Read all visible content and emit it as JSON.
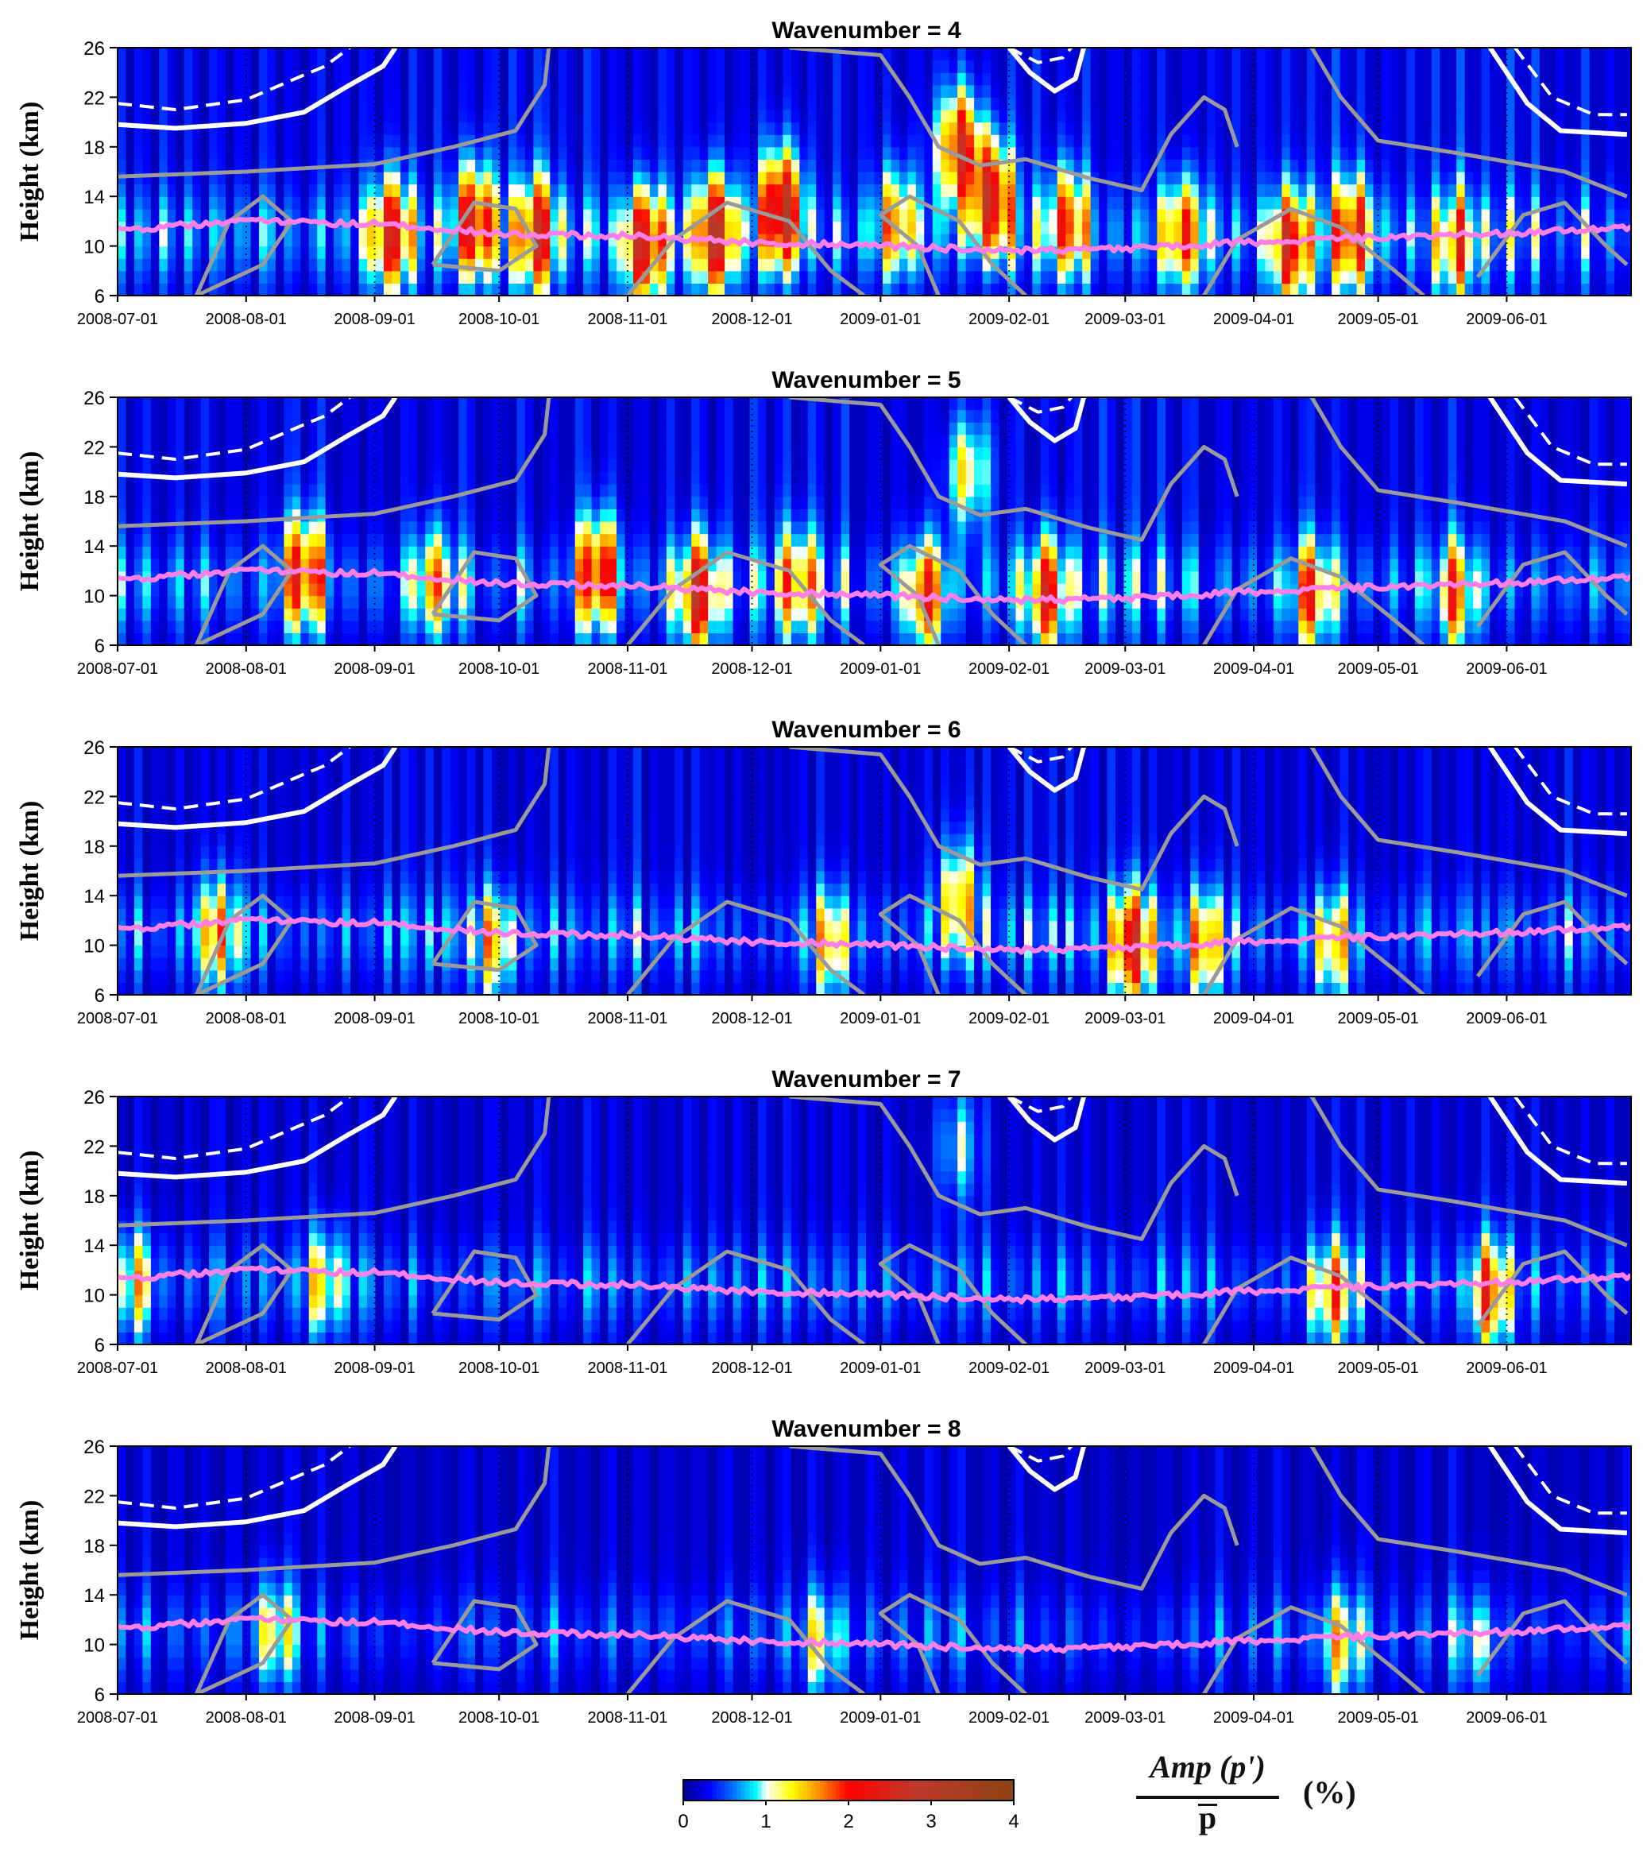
{
  "chart_data": {
    "type": "heatmap",
    "x_tick_labels": [
      "2008-07-01",
      "2008-08-01",
      "2008-09-01",
      "2008-10-01",
      "2008-11-01",
      "2008-12-01",
      "2009-01-01",
      "2009-02-01",
      "2009-03-01",
      "2009-04-01",
      "2009-05-01",
      "2009-06-01"
    ],
    "x_range": [
      "2008-07-01",
      "2009-06-30"
    ],
    "y_ticks": [
      6,
      10,
      14,
      18,
      22,
      26
    ],
    "ylim": [
      6,
      26
    ],
    "ylabel": "Height (km)",
    "panels": [
      {
        "title": "Wavenumber = 4",
        "amplitude_blobs": [
          {
            "date": "2008-09-05",
            "height": 11,
            "amp": 2.1
          },
          {
            "date": "2008-09-25",
            "height": 12,
            "amp": 2.2
          },
          {
            "date": "2008-10-10",
            "height": 11,
            "amp": 2.0
          },
          {
            "date": "2008-11-05",
            "height": 10,
            "amp": 2.4
          },
          {
            "date": "2008-11-22",
            "height": 11,
            "amp": 2.6
          },
          {
            "date": "2008-12-08",
            "height": 13,
            "amp": 2.8
          },
          {
            "date": "2009-01-05",
            "height": 12,
            "amp": 1.4
          },
          {
            "date": "2009-01-20",
            "height": 18,
            "amp": 2.3
          },
          {
            "date": "2009-01-28",
            "height": 14,
            "amp": 2.4
          },
          {
            "date": "2009-02-15",
            "height": 12,
            "amp": 1.6
          },
          {
            "date": "2009-03-15",
            "height": 11,
            "amp": 1.7
          },
          {
            "date": "2009-04-10",
            "height": 10,
            "amp": 2.0
          },
          {
            "date": "2009-04-25",
            "height": 11,
            "amp": 1.8
          },
          {
            "date": "2009-05-20",
            "height": 10,
            "amp": 1.3
          }
        ]
      },
      {
        "title": "Wavenumber = 5",
        "amplitude_blobs": [
          {
            "date": "2008-08-15",
            "height": 12,
            "amp": 2.0
          },
          {
            "date": "2008-09-15",
            "height": 11,
            "amp": 1.4
          },
          {
            "date": "2008-10-25",
            "height": 12,
            "amp": 2.2
          },
          {
            "date": "2008-11-18",
            "height": 10,
            "amp": 2.2
          },
          {
            "date": "2008-12-12",
            "height": 11,
            "amp": 1.5
          },
          {
            "date": "2009-01-12",
            "height": 10,
            "amp": 2.0
          },
          {
            "date": "2009-01-22",
            "height": 20,
            "amp": 1.4
          },
          {
            "date": "2009-02-10",
            "height": 10,
            "amp": 2.0
          },
          {
            "date": "2009-04-15",
            "height": 10,
            "amp": 1.6
          },
          {
            "date": "2009-05-20",
            "height": 10,
            "amp": 1.4
          }
        ]
      },
      {
        "title": "Wavenumber = 6",
        "amplitude_blobs": [
          {
            "date": "2008-07-25",
            "height": 11,
            "amp": 1.6
          },
          {
            "date": "2008-09-30",
            "height": 10,
            "amp": 1.4
          },
          {
            "date": "2008-12-20",
            "height": 10,
            "amp": 1.3
          },
          {
            "date": "2009-01-20",
            "height": 14,
            "amp": 1.5
          },
          {
            "date": "2009-03-03",
            "height": 10,
            "amp": 2.4
          },
          {
            "date": "2009-03-20",
            "height": 10,
            "amp": 1.6
          },
          {
            "date": "2009-04-20",
            "height": 10,
            "amp": 1.4
          }
        ]
      },
      {
        "title": "Wavenumber = 7",
        "amplitude_blobs": [
          {
            "date": "2008-07-05",
            "height": 11,
            "amp": 1.4
          },
          {
            "date": "2008-08-20",
            "height": 11,
            "amp": 1.4
          },
          {
            "date": "2009-01-20",
            "height": 22,
            "amp": 1.0
          },
          {
            "date": "2009-04-20",
            "height": 10,
            "amp": 1.8
          },
          {
            "date": "2009-05-28",
            "height": 10,
            "amp": 2.1
          }
        ]
      },
      {
        "title": "Wavenumber = 8",
        "amplitude_blobs": [
          {
            "date": "2008-08-08",
            "height": 11,
            "amp": 1.5
          },
          {
            "date": "2008-12-18",
            "height": 10,
            "amp": 1.3
          },
          {
            "date": "2009-04-22",
            "height": 10,
            "amp": 1.8
          },
          {
            "date": "2009-05-25",
            "height": 10,
            "amp": 1.1
          }
        ]
      }
    ],
    "tropopause_line": {
      "color": "#ff7fe8",
      "points": [
        {
          "date": "2008-07-01",
          "height": 11.3
        },
        {
          "date": "2008-08-01",
          "height": 12.0
        },
        {
          "date": "2008-09-01",
          "height": 11.8
        },
        {
          "date": "2008-10-01",
          "height": 11.0
        },
        {
          "date": "2008-11-01",
          "height": 10.8
        },
        {
          "date": "2008-12-01",
          "height": 10.3
        },
        {
          "date": "2009-01-01",
          "height": 10.0
        },
        {
          "date": "2009-02-01",
          "height": 9.6
        },
        {
          "date": "2009-03-01",
          "height": 9.8
        },
        {
          "date": "2009-04-01",
          "height": 10.3
        },
        {
          "date": "2009-05-01",
          "height": 10.7
        },
        {
          "date": "2009-06-01",
          "height": 11.0
        },
        {
          "date": "2009-06-30",
          "height": 11.4
        }
      ]
    },
    "white_solid_contour": [
      {
        "points": [
          {
            "date": "2008-07-01",
            "height": 19.8
          },
          {
            "date": "2008-07-15",
            "height": 19.5
          },
          {
            "date": "2008-08-01",
            "height": 19.9
          },
          {
            "date": "2008-08-15",
            "height": 20.8
          },
          {
            "date": "2008-08-25",
            "height": 22.8
          },
          {
            "date": "2008-09-03",
            "height": 24.5
          },
          {
            "date": "2008-09-06",
            "height": 26
          }
        ]
      },
      {
        "points": [
          {
            "date": "2009-02-01",
            "height": 26
          },
          {
            "date": "2009-02-06",
            "height": 24
          },
          {
            "date": "2009-02-12",
            "height": 22.5
          },
          {
            "date": "2009-02-17",
            "height": 23.5
          },
          {
            "date": "2009-02-19",
            "height": 26
          }
        ]
      },
      {
        "points": [
          {
            "date": "2009-05-28",
            "height": 26
          },
          {
            "date": "2009-06-06",
            "height": 21.5
          },
          {
            "date": "2009-06-14",
            "height": 19.3
          },
          {
            "date": "2009-06-30",
            "height": 19.0
          }
        ]
      }
    ],
    "white_dashed_contour": [
      {
        "points": [
          {
            "date": "2008-07-01",
            "height": 21.5
          },
          {
            "date": "2008-07-15",
            "height": 21.0
          },
          {
            "date": "2008-08-01",
            "height": 21.8
          },
          {
            "date": "2008-08-15",
            "height": 23.8
          },
          {
            "date": "2008-08-20",
            "height": 24.5
          },
          {
            "date": "2008-08-26",
            "height": 26
          }
        ]
      },
      {
        "points": [
          {
            "date": "2009-02-01",
            "height": 26
          },
          {
            "date": "2009-02-08",
            "height": 24.8
          },
          {
            "date": "2009-02-14",
            "height": 25.2
          },
          {
            "date": "2009-02-16",
            "height": 26
          }
        ]
      },
      {
        "points": [
          {
            "date": "2009-06-03",
            "height": 26
          },
          {
            "date": "2009-06-12",
            "height": 22.0
          },
          {
            "date": "2009-06-22",
            "height": 20.6
          },
          {
            "date": "2009-06-30",
            "height": 20.6
          }
        ]
      }
    ],
    "gray_contour": {
      "color": "#9a9a9a",
      "paths": [
        {
          "points": [
            {
              "date": "2008-07-01",
              "height": 15.6
            },
            {
              "date": "2008-08-01",
              "height": 16.0
            },
            {
              "date": "2008-09-01",
              "height": 16.6
            },
            {
              "date": "2008-09-20",
              "height": 18.0
            },
            {
              "date": "2008-10-05",
              "height": 19.3
            },
            {
              "date": "2008-10-12",
              "height": 23
            },
            {
              "date": "2008-10-13",
              "height": 26
            }
          ]
        },
        {
          "points": [
            {
              "date": "2008-12-10",
              "height": 26
            },
            {
              "date": "2009-01-01",
              "height": 25.4
            },
            {
              "date": "2009-01-08",
              "height": 22
            },
            {
              "date": "2009-01-15",
              "height": 18
            },
            {
              "date": "2009-01-25",
              "height": 16.5
            },
            {
              "date": "2009-02-05",
              "height": 17.0
            },
            {
              "date": "2009-02-20",
              "height": 15.5
            },
            {
              "date": "2009-03-05",
              "height": 14.5
            },
            {
              "date": "2009-03-12",
              "height": 19.0
            },
            {
              "date": "2009-03-20",
              "height": 22.0
            },
            {
              "date": "2009-03-25",
              "height": 21.0
            },
            {
              "date": "2009-03-28",
              "height": 18.0
            }
          ]
        },
        {
          "points": [
            {
              "date": "2009-04-15",
              "height": 26
            },
            {
              "date": "2009-04-22",
              "height": 22
            },
            {
              "date": "2009-05-01",
              "height": 18.5
            },
            {
              "date": "2009-05-20",
              "height": 17.5
            },
            {
              "date": "2009-06-15",
              "height": 16.0
            },
            {
              "date": "2009-06-30",
              "height": 14.0
            }
          ]
        },
        {
          "points": [
            {
              "date": "2008-07-20",
              "height": 6
            },
            {
              "date": "2008-08-05",
              "height": 8.5
            },
            {
              "date": "2008-08-12",
              "height": 12
            },
            {
              "date": "2008-08-05",
              "height": 14
            },
            {
              "date": "2008-07-28",
              "height": 12
            },
            {
              "date": "2008-07-20",
              "height": 6
            }
          ]
        },
        {
          "points": [
            {
              "date": "2008-09-15",
              "height": 8.5
            },
            {
              "date": "2008-09-25",
              "height": 13.5
            },
            {
              "date": "2008-10-05",
              "height": 13.0
            },
            {
              "date": "2008-10-10",
              "height": 10.0
            },
            {
              "date": "2008-10-01",
              "height": 8.0
            },
            {
              "date": "2008-09-15",
              "height": 8.5
            }
          ]
        },
        {
          "points": [
            {
              "date": "2008-11-01",
              "height": 6
            },
            {
              "date": "2008-11-12",
              "height": 10.5
            },
            {
              "date": "2008-11-25",
              "height": 13.5
            },
            {
              "date": "2008-12-10",
              "height": 12.0
            },
            {
              "date": "2008-12-20",
              "height": 8.0
            },
            {
              "date": "2008-12-28",
              "height": 6
            }
          ]
        },
        {
          "points": [
            {
              "date": "2009-01-15",
              "height": 6
            },
            {
              "date": "2009-01-10",
              "height": 10
            },
            {
              "date": "2009-01-01",
              "height": 12.5
            },
            {
              "date": "2009-01-08",
              "height": 14.0
            },
            {
              "date": "2009-01-20",
              "height": 12.0
            },
            {
              "date": "2009-01-28",
              "height": 8.5
            },
            {
              "date": "2009-02-05",
              "height": 6
            }
          ]
        },
        {
          "points": [
            {
              "date": "2009-03-20",
              "height": 6
            },
            {
              "date": "2009-03-28",
              "height": 10.5
            },
            {
              "date": "2009-04-10",
              "height": 13.0
            },
            {
              "date": "2009-04-22",
              "height": 11.5
            },
            {
              "date": "2009-05-05",
              "height": 8.0
            },
            {
              "date": "2009-05-12",
              "height": 6
            }
          ]
        },
        {
          "points": [
            {
              "date": "2009-05-25",
              "height": 7.5
            },
            {
              "date": "2009-06-05",
              "height": 12.5
            },
            {
              "date": "2009-06-15",
              "height": 13.5
            },
            {
              "date": "2009-06-25",
              "height": 10.0
            },
            {
              "date": "2009-06-30",
              "height": 8.5
            }
          ]
        }
      ]
    },
    "colorbar": {
      "ticks": [
        "0",
        "1",
        "2",
        "3",
        "4"
      ],
      "range": [
        0,
        4
      ],
      "colors": [
        "#00008f",
        "#0000ff",
        "#0080ff",
        "#00ffff",
        "#ffffff",
        "#ffff00",
        "#ff8000",
        "#ff0000",
        "#c0392b",
        "#8b4513"
      ]
    },
    "colorbar_label": {
      "numerator": "Amp (p')",
      "denominator": "p",
      "unit": "(%)"
    }
  }
}
